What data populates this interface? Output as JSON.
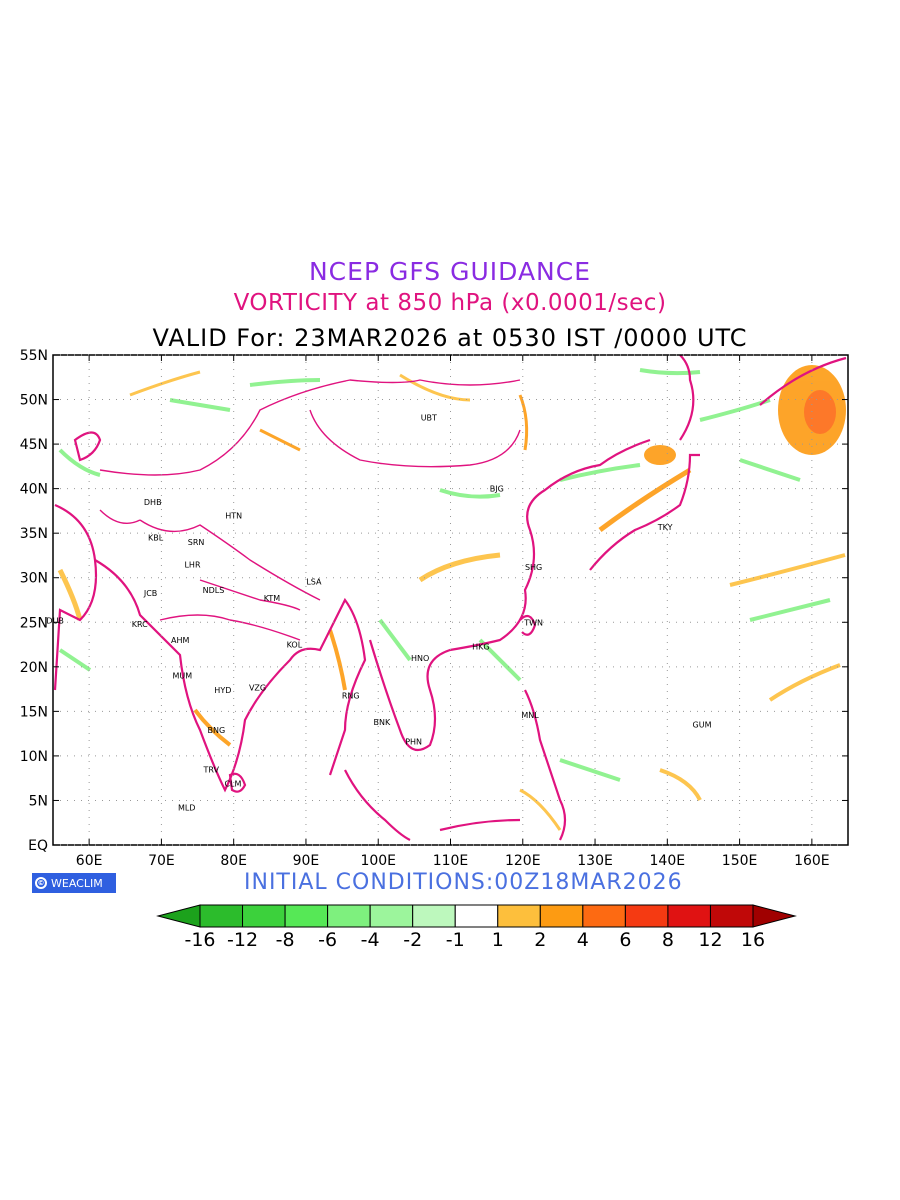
{
  "header": {
    "title": "NCEP GFS GUIDANCE",
    "subtitle": "VORTICITY at 850 hPa (x0.0001/sec)",
    "valid_line": "VALID For: 23MAR2026 at 0530 IST /0000 UTC"
  },
  "footer": {
    "initial_conditions": "INITIAL CONDITIONS:00Z18MAR2026",
    "logo_text": "WEACLIM",
    "logo_icon": "copyright-icon"
  },
  "axes": {
    "lat_labels": [
      "55N",
      "50N",
      "45N",
      "40N",
      "35N",
      "30N",
      "25N",
      "20N",
      "15N",
      "10N",
      "5N",
      "EQ"
    ],
    "lat_values": [
      55,
      50,
      45,
      40,
      35,
      30,
      25,
      20,
      15,
      10,
      5,
      0
    ],
    "lon_labels": [
      "60E",
      "70E",
      "80E",
      "90E",
      "100E",
      "110E",
      "120E",
      "130E",
      "140E",
      "150E",
      "160E"
    ],
    "lon_values": [
      60,
      70,
      80,
      90,
      100,
      110,
      120,
      130,
      140,
      150,
      160
    ],
    "lon_range": [
      55,
      165
    ],
    "lat_range": [
      0,
      55
    ],
    "grid": "dotted"
  },
  "legend": {
    "labels": [
      "-16",
      "-12",
      "-8",
      "-6",
      "-4",
      "-2",
      "-1",
      "1",
      "2",
      "4",
      "6",
      "8",
      "12",
      "16"
    ],
    "colors": [
      "#1ca21c",
      "#2cbc2c",
      "#3cd13c",
      "#56e856",
      "#7ef07e",
      "#9cf59c",
      "#bdf8bd",
      "#ffffff",
      "#fdbf3c",
      "#fd9b12",
      "#fd6a12",
      "#f53a12",
      "#e01212",
      "#c00808",
      "#a00000"
    ]
  },
  "stations": [
    {
      "code": "UBT",
      "lon": 107,
      "lat": 48
    },
    {
      "code": "BJG",
      "lon": 116.4,
      "lat": 40
    },
    {
      "code": "DHB",
      "lon": 68.8,
      "lat": 38.5
    },
    {
      "code": "HTN",
      "lon": 80,
      "lat": 37
    },
    {
      "code": "KBL",
      "lon": 69.2,
      "lat": 34.5
    },
    {
      "code": "SRN",
      "lon": 74.8,
      "lat": 34
    },
    {
      "code": "LHR",
      "lon": 74.3,
      "lat": 31.5
    },
    {
      "code": "LSA",
      "lon": 91.1,
      "lat": 29.6
    },
    {
      "code": "SHG",
      "lon": 121.5,
      "lat": 31.2
    },
    {
      "code": "TKY",
      "lon": 139.7,
      "lat": 35.7
    },
    {
      "code": "JCB",
      "lon": 68.5,
      "lat": 28.3
    },
    {
      "code": "NDLS",
      "lon": 77.2,
      "lat": 28.6
    },
    {
      "code": "KTM",
      "lon": 85.3,
      "lat": 27.7
    },
    {
      "code": "DUB",
      "lon": 55.3,
      "lat": 25.2
    },
    {
      "code": "KRC",
      "lon": 67,
      "lat": 24.8
    },
    {
      "code": "TWN",
      "lon": 121.5,
      "lat": 25
    },
    {
      "code": "AHM",
      "lon": 72.6,
      "lat": 23
    },
    {
      "code": "KOL",
      "lon": 88.4,
      "lat": 22.5
    },
    {
      "code": "HKG",
      "lon": 114.2,
      "lat": 22.3
    },
    {
      "code": "HNO",
      "lon": 105.8,
      "lat": 21
    },
    {
      "code": "MUM",
      "lon": 72.9,
      "lat": 19
    },
    {
      "code": "HYD",
      "lon": 78.5,
      "lat": 17.4
    },
    {
      "code": "VZG",
      "lon": 83.3,
      "lat": 17.7
    },
    {
      "code": "RNG",
      "lon": 96.2,
      "lat": 16.8
    },
    {
      "code": "MNL",
      "lon": 121,
      "lat": 14.6
    },
    {
      "code": "GUM",
      "lon": 144.8,
      "lat": 13.5
    },
    {
      "code": "BNK",
      "lon": 100.5,
      "lat": 13.8
    },
    {
      "code": "BNG",
      "lon": 77.6,
      "lat": 12.9
    },
    {
      "code": "PHN",
      "lon": 104.9,
      "lat": 11.6
    },
    {
      "code": "TRV",
      "lon": 76.9,
      "lat": 8.5
    },
    {
      "code": "CLM",
      "lon": 79.9,
      "lat": 6.9
    },
    {
      "code": "MLD",
      "lon": 73.5,
      "lat": 4.2
    }
  ]
}
